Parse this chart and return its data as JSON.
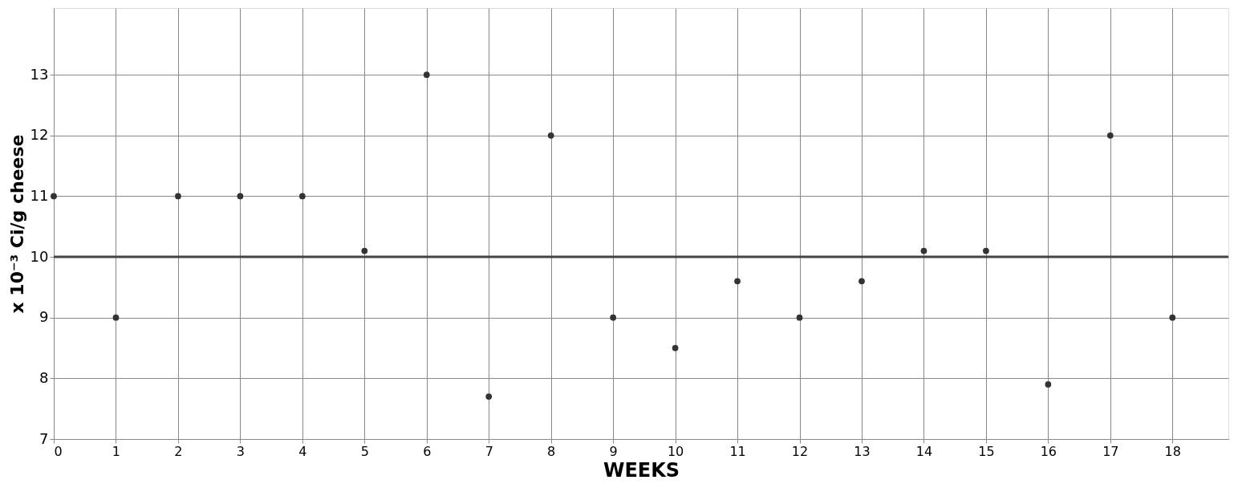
{
  "chart_data": {
    "type": "scatter",
    "xlabel": "WEEKS",
    "ylabel": "x 10⁻³ Ci/g cheese",
    "x": [
      0,
      1,
      2,
      3,
      4,
      5,
      6,
      7,
      8,
      9,
      10,
      11,
      12,
      13,
      14,
      15,
      16,
      17,
      18
    ],
    "series": [
      {
        "color": "#333333",
        "values": [
          11,
          9,
          11,
          11,
          11,
          10.1,
          13,
          7.7,
          12,
          9,
          8.5,
          9.6,
          9,
          9.6,
          10.1,
          10.1,
          7.9,
          12,
          9
        ]
      }
    ],
    "xlim": [
      0,
      18.9
    ],
    "xticks": [
      0,
      1,
      2,
      3,
      4,
      5,
      6,
      7,
      8,
      9,
      10,
      11,
      12,
      13,
      14,
      15,
      16,
      17,
      18
    ],
    "ylim": [
      7,
      14.1
    ],
    "yticks": [
      7,
      8,
      9,
      10,
      11,
      12,
      13
    ],
    "ref_lines": [
      {
        "axis": "y",
        "value": 10,
        "color": "#444444",
        "line_style": "solid"
      }
    ],
    "grid": true,
    "marker": "circle"
  }
}
